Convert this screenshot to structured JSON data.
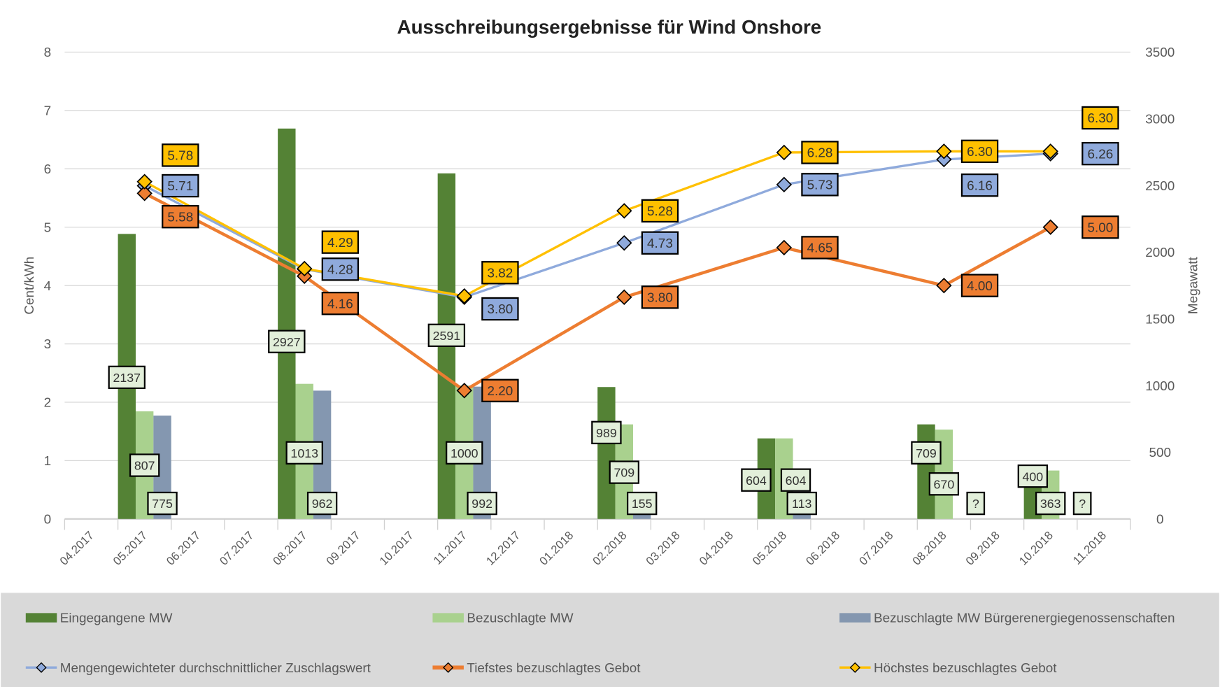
{
  "chart_data": {
    "type": "bar+line",
    "title": "Ausschreibungsergebnisse für Wind Onshore",
    "ylabel": "Cent/kWh",
    "y2label": "Megawatt",
    "ylim": [
      0,
      8
    ],
    "y2lim": [
      0,
      3500
    ],
    "yticks": [
      "0",
      "1",
      "2",
      "3",
      "4",
      "5",
      "6",
      "7",
      "8"
    ],
    "y2ticks": [
      "0",
      "500",
      "1000",
      "1500",
      "2000",
      "2500",
      "3000",
      "3500"
    ],
    "grid": true,
    "legend_position": "bottom",
    "categories": [
      "04.2017",
      "05.2017",
      "06.2017",
      "07.2017",
      "08.2017",
      "09.2017",
      "10.2017",
      "11.2017",
      "12.2017",
      "01.2018",
      "02.2018",
      "03.2018",
      "04.2018",
      "05.2018",
      "06.2018",
      "07.2018",
      "08.2018",
      "09.2018",
      "10.2018",
      "11.2018"
    ],
    "rounds": [
      "05.2017",
      "08.2017",
      "11.2017",
      "02.2018",
      "05.2018",
      "08.2018",
      "10.2018"
    ],
    "bar_series": [
      {
        "name": "Eingegangene MW",
        "color": "#548235",
        "values": [
          2137,
          2927,
          2591,
          989,
          604,
          709,
          400
        ],
        "labels": [
          "2137",
          "2927",
          "2591",
          "989",
          "604",
          "709",
          "400"
        ]
      },
      {
        "name": "Bezuschlagte MW",
        "color": "#A9D18E",
        "values": [
          807,
          1013,
          1000,
          709,
          604,
          670,
          363
        ],
        "labels": [
          "807",
          "1013",
          "1000",
          "709",
          "604",
          "670",
          "363"
        ]
      },
      {
        "name": "Bezuschlagte MW Bürgerenergiegenossenschaften",
        "color": "#8497B0",
        "values": [
          775,
          962,
          992,
          155,
          113,
          null,
          null
        ],
        "labels": [
          "775",
          "962",
          "992",
          "155",
          "113",
          "?",
          "?"
        ]
      }
    ],
    "line_series": [
      {
        "name": "Mengengewichteter durchschnittlicher Zuschlagswert",
        "color": "#8FAADC",
        "values": [
          5.71,
          4.28,
          3.8,
          4.73,
          5.73,
          6.16,
          6.26
        ],
        "labels": [
          "5.71",
          "4.28",
          "3.80",
          "4.73",
          "5.73",
          "6.16",
          "6.26"
        ]
      },
      {
        "name": "Tiefstes bezuschlagtes Gebot",
        "color": "#ED7D31",
        "values": [
          5.58,
          4.16,
          2.2,
          3.8,
          4.65,
          4.0,
          5.0
        ],
        "labels": [
          "5.58",
          "4.16",
          "2.20",
          "3.80",
          "4.65",
          "4.00",
          "5.00"
        ]
      },
      {
        "name": "Höchstes bezuschlagtes Gebot",
        "color": "#FFC000",
        "values": [
          5.78,
          4.29,
          3.82,
          5.28,
          6.28,
          6.3,
          6.3
        ],
        "labels": [
          "5.78",
          "4.29",
          "3.82",
          "5.28",
          "6.28",
          "6.30",
          "6.30"
        ]
      }
    ]
  }
}
